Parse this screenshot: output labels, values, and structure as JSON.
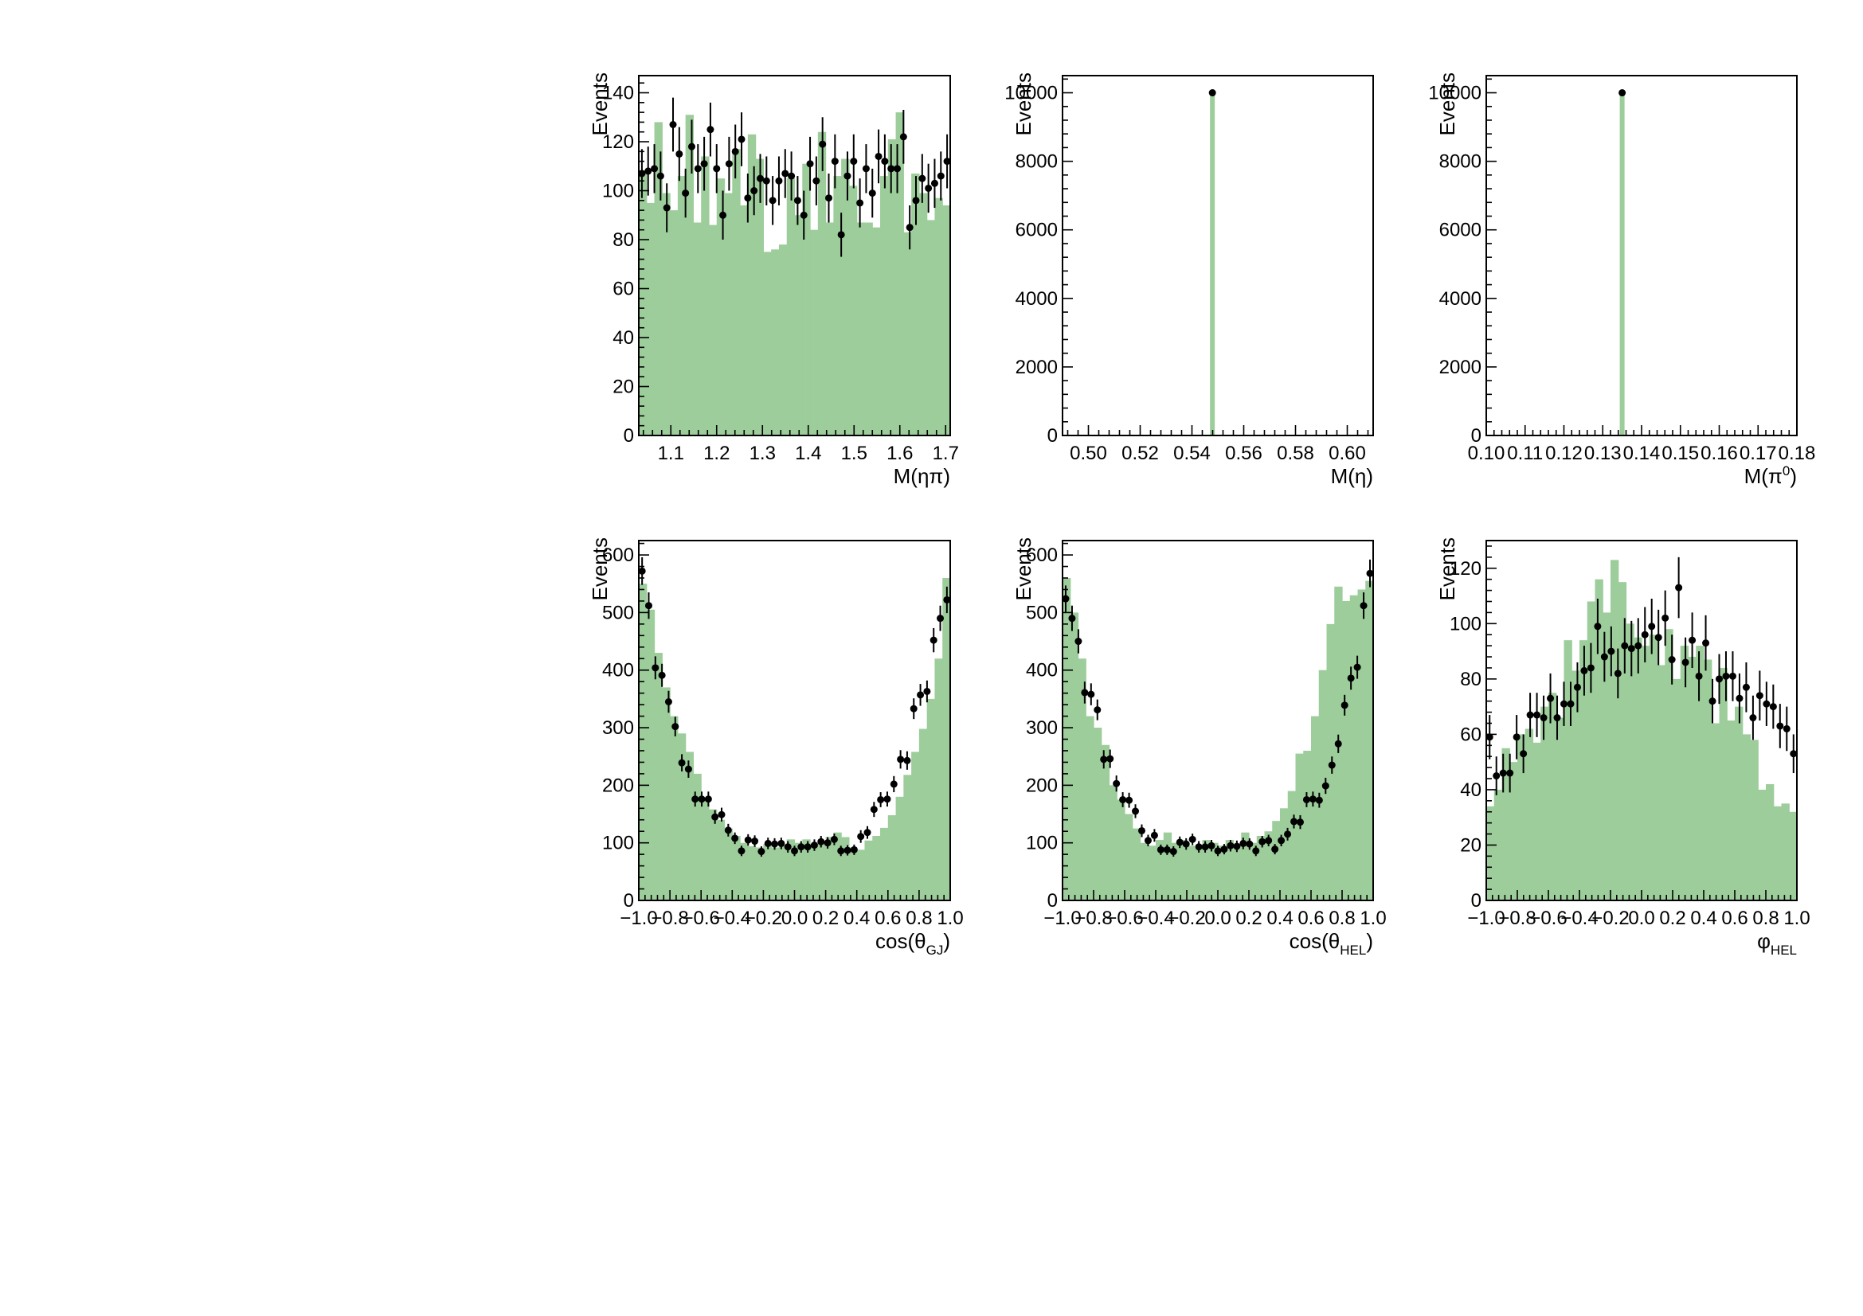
{
  "colors": {
    "mc_fill": "#9dcd9b",
    "data_marker": "#000000"
  },
  "chart_data": [
    {
      "type": "bar",
      "xlabel": "M(ηπ)",
      "ylabel": "Events",
      "xlim": [
        1.03,
        1.71
      ],
      "ylim": [
        0,
        147
      ],
      "xticks": [
        1.1,
        1.2,
        1.3,
        1.4,
        1.5,
        1.6,
        1.7
      ],
      "xtick_labels": [
        "1.1",
        "1.2",
        "1.3",
        "1.4",
        "1.5",
        "1.6",
        "1.7"
      ],
      "yticks": [
        0,
        20,
        40,
        60,
        80,
        100,
        120,
        140
      ],
      "ytick_labels": [
        "0",
        "20",
        "40",
        "60",
        "80",
        "100",
        "120",
        "140"
      ],
      "mc_values": [
        107,
        95,
        128,
        99,
        92,
        106,
        131,
        87,
        114,
        86,
        105,
        99,
        117,
        94,
        123,
        113,
        75,
        76,
        78,
        105,
        90,
        111,
        84,
        124,
        87,
        106,
        113,
        102,
        87,
        87,
        85,
        106,
        121,
        132,
        83,
        107,
        99,
        88,
        97,
        94
      ],
      "data_values": [
        107,
        108,
        109,
        106,
        93,
        127,
        115,
        99,
        118,
        109,
        111,
        125,
        109,
        90,
        111,
        116,
        121,
        97,
        100,
        105,
        104,
        96,
        104,
        107,
        106,
        96,
        90,
        111,
        104,
        119,
        97,
        112,
        82,
        106,
        112,
        95,
        109,
        99,
        114,
        112,
        109,
        109,
        122,
        85,
        96,
        105,
        101,
        103,
        106,
        112
      ],
      "data_errors": [
        10,
        10,
        10,
        10,
        10,
        11,
        11,
        10,
        11,
        10,
        11,
        11,
        10,
        10,
        11,
        11,
        11,
        10,
        10,
        10,
        10,
        10,
        10,
        10,
        10,
        10,
        10,
        11,
        10,
        11,
        10,
        11,
        9,
        10,
        11,
        10,
        10,
        10,
        11,
        11,
        10,
        10,
        11,
        9,
        10,
        10,
        10,
        10,
        10,
        11
      ]
    },
    {
      "type": "bar",
      "xlabel": "M(η)",
      "ylabel": "Events",
      "xlim": [
        0.49,
        0.61
      ],
      "ylim": [
        0,
        10500
      ],
      "xticks": [
        0.5,
        0.52,
        0.54,
        0.56,
        0.58,
        0.6
      ],
      "xtick_labels": [
        "0.50",
        "0.52",
        "0.54",
        "0.56",
        "0.58",
        "0.60"
      ],
      "yticks": [
        0,
        2000,
        4000,
        6000,
        8000,
        10000
      ],
      "ytick_labels": [
        "0",
        "2000",
        "4000",
        "6000",
        "8000",
        "10000"
      ],
      "mc_bars": [
        {
          "x": 0.5479,
          "value": 10000
        }
      ],
      "data_points": [
        {
          "x": 0.5479,
          "value": 10000,
          "error": 100
        }
      ]
    },
    {
      "type": "bar",
      "xlabel": "M(π⁰)",
      "ylabel": "Events",
      "xlim": [
        0.1,
        0.18
      ],
      "ylim": [
        0,
        10500
      ],
      "xticks": [
        0.1,
        0.11,
        0.12,
        0.13,
        0.14,
        0.15,
        0.16,
        0.17,
        0.18
      ],
      "xtick_labels": [
        "0.10",
        "0.11",
        "0.12",
        "0.13",
        "0.14",
        "0.15",
        "0.16",
        "0.17",
        "0.18"
      ],
      "yticks": [
        0,
        2000,
        4000,
        6000,
        8000,
        10000
      ],
      "ytick_labels": [
        "0",
        "2000",
        "4000",
        "6000",
        "8000",
        "10000"
      ],
      "mc_bars": [
        {
          "x": 0.135,
          "value": 10000
        }
      ],
      "data_points": [
        {
          "x": 0.135,
          "value": 10000,
          "error": 100
        }
      ]
    },
    {
      "type": "bar",
      "xlabel": "cos(θGJ)",
      "ylabel": "Events",
      "xlim": [
        -1.0,
        1.0
      ],
      "ylim": [
        0,
        625
      ],
      "xticks": [
        -1.0,
        -0.8,
        -0.6,
        -0.4,
        -0.2,
        0.0,
        0.2,
        0.4,
        0.6,
        0.8,
        1.0
      ],
      "xtick_labels": [
        "−1.0",
        "−0.8",
        "−0.6",
        "−0.4",
        "−0.2",
        "0.0",
        "0.2",
        "0.4",
        "0.6",
        "0.8",
        "1.0"
      ],
      "yticks": [
        0,
        100,
        200,
        300,
        400,
        500,
        600
      ],
      "ytick_labels": [
        "0",
        "100",
        "200",
        "300",
        "400",
        "500",
        "600"
      ],
      "mc_values": [
        550,
        505,
        430,
        370,
        320,
        290,
        258,
        220,
        178,
        158,
        140,
        125,
        112,
        100,
        94,
        92,
        98,
        92,
        96,
        106,
        100,
        106,
        94,
        100,
        110,
        118,
        110,
        92,
        88,
        104,
        112,
        126,
        148,
        180,
        218,
        258,
        298,
        350,
        420,
        560
      ],
      "data_values": [
        572,
        512,
        404,
        391,
        345,
        302,
        239,
        228,
        176,
        176,
        176,
        145,
        149,
        122,
        108,
        86,
        105,
        103,
        85,
        99,
        98,
        99,
        93,
        86,
        93,
        93,
        96,
        102,
        100,
        106,
        86,
        87,
        88,
        111,
        118,
        158,
        175,
        176,
        202,
        245,
        243,
        333,
        357,
        363,
        452,
        490,
        522
      ],
      "data_errors": [
        24,
        23,
        20,
        20,
        19,
        17,
        15,
        15,
        13,
        13,
        13,
        12,
        12,
        11,
        10,
        9,
        10,
        10,
        9,
        10,
        10,
        10,
        10,
        9,
        10,
        10,
        10,
        10,
        10,
        10,
        9,
        9,
        9,
        11,
        11,
        13,
        13,
        13,
        14,
        16,
        16,
        18,
        19,
        19,
        21,
        22,
        23
      ]
    },
    {
      "type": "bar",
      "xlabel": "cos(θHEL)",
      "ylabel": "Events",
      "xlim": [
        -1.0,
        1.0
      ],
      "ylim": [
        0,
        625
      ],
      "xticks": [
        -1.0,
        -0.8,
        -0.6,
        -0.4,
        -0.2,
        0.0,
        0.2,
        0.4,
        0.6,
        0.8,
        1.0
      ],
      "xtick_labels": [
        "−1.0",
        "−0.8",
        "−0.6",
        "−0.4",
        "−0.2",
        "0.0",
        "0.2",
        "0.4",
        "0.6",
        "0.8",
        "1.0"
      ],
      "yticks": [
        0,
        100,
        200,
        300,
        400,
        500,
        600
      ],
      "ytick_labels": [
        "0",
        "100",
        "200",
        "300",
        "400",
        "500",
        "600"
      ],
      "mc_values": [
        560,
        500,
        420,
        320,
        300,
        270,
        200,
        175,
        150,
        125,
        100,
        95,
        105,
        118,
        100,
        105,
        95,
        90,
        105,
        100,
        95,
        105,
        95,
        118,
        100,
        112,
        120,
        138,
        160,
        190,
        255,
        260,
        320,
        400,
        480,
        545,
        520,
        530,
        540,
        555
      ],
      "data_values": [
        524,
        490,
        450,
        361,
        358,
        331,
        245,
        246,
        203,
        175,
        174,
        155,
        121,
        104,
        113,
        88,
        88,
        85,
        101,
        98,
        106,
        93,
        93,
        95,
        86,
        89,
        95,
        94,
        99,
        98,
        86,
        102,
        104,
        89,
        104,
        115,
        137,
        136,
        175,
        176,
        174,
        199,
        235,
        272,
        339,
        386,
        405,
        512,
        568
      ],
      "data_errors": [
        23,
        22,
        21,
        19,
        19,
        18,
        16,
        16,
        14,
        13,
        13,
        12,
        11,
        10,
        11,
        9,
        9,
        9,
        10,
        10,
        10,
        10,
        10,
        10,
        9,
        9,
        10,
        10,
        10,
        10,
        9,
        10,
        10,
        9,
        10,
        11,
        12,
        12,
        13,
        13,
        13,
        14,
        15,
        16,
        18,
        20,
        20,
        23,
        24
      ]
    },
    {
      "type": "bar",
      "xlabel": "φHEL",
      "ylabel": "Events",
      "xlim": [
        -1.0,
        1.0
      ],
      "ylim": [
        0,
        130
      ],
      "xticks": [
        -1.0,
        -0.8,
        -0.6,
        -0.4,
        -0.2,
        0.0,
        0.2,
        0.4,
        0.6,
        0.8,
        1.0
      ],
      "xtick_labels": [
        "−1.0",
        "−0.8",
        "−0.6",
        "−0.4",
        "−0.2",
        "0.0",
        "0.2",
        "0.4",
        "0.6",
        "0.8",
        "1.0"
      ],
      "yticks": [
        0,
        20,
        40,
        60,
        80,
        100,
        120
      ],
      "ytick_labels": [
        "0",
        "20",
        "40",
        "60",
        "80",
        "100",
        "120"
      ],
      "mc_values": [
        34,
        40,
        55,
        50,
        60,
        62,
        57,
        70,
        75,
        66,
        94,
        83,
        94,
        108,
        116,
        104,
        123,
        115,
        100,
        95,
        92,
        96,
        85,
        98,
        80,
        92,
        88,
        92,
        87,
        64,
        84,
        65,
        70,
        60,
        58,
        40,
        42,
        34,
        35,
        32
      ],
      "data_values": [
        59,
        45,
        46,
        46,
        59,
        53,
        67,
        67,
        66,
        73,
        66,
        71,
        71,
        77,
        83,
        84,
        99,
        88,
        90,
        82,
        92,
        91,
        92,
        96,
        99,
        95,
        102,
        87,
        113,
        86,
        94,
        81,
        93,
        72,
        80,
        81,
        81,
        73,
        77,
        66,
        74,
        71,
        70,
        63,
        62,
        53
      ],
      "data_errors": [
        8,
        7,
        7,
        7,
        8,
        7,
        8,
        8,
        8,
        9,
        8,
        8,
        8,
        9,
        9,
        9,
        10,
        9,
        9,
        9,
        10,
        10,
        10,
        10,
        10,
        10,
        10,
        9,
        11,
        9,
        10,
        9,
        10,
        8,
        9,
        9,
        9,
        9,
        9,
        8,
        9,
        8,
        8,
        8,
        8,
        7
      ]
    }
  ]
}
